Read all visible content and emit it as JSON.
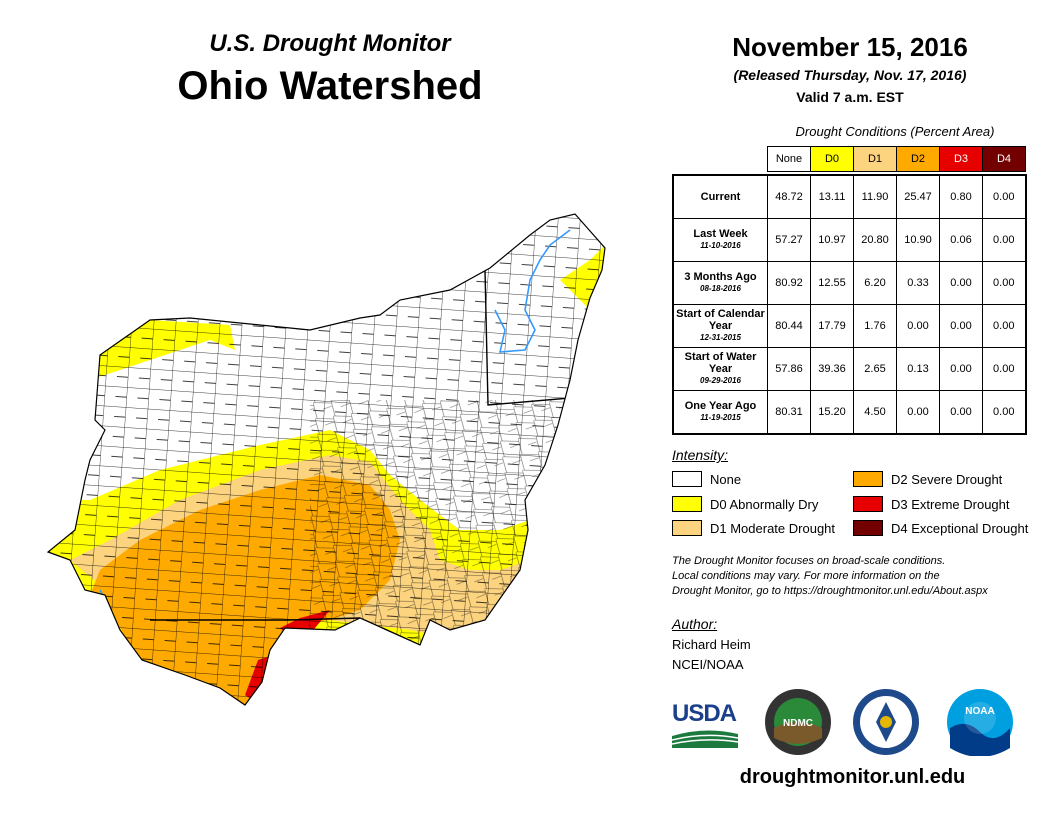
{
  "header": {
    "monitor_title": "U.S. Drought Monitor",
    "map_title": "Ohio Watershed",
    "date": "November 15, 2016",
    "released": "(Released Thursday, Nov. 17, 2016)",
    "valid": "Valid 7 a.m. EST"
  },
  "table": {
    "title": "Drought Conditions (Percent Area)",
    "columns": [
      {
        "label": "None",
        "color": "#ffffff",
        "text_color": "#000000"
      },
      {
        "label": "D0",
        "color": "#ffff00",
        "text_color": "#000000"
      },
      {
        "label": "D1",
        "color": "#fcd37f",
        "text_color": "#000000"
      },
      {
        "label": "D2",
        "color": "#ffaa00",
        "text_color": "#000000"
      },
      {
        "label": "D3",
        "color": "#e60000",
        "text_color": "#ffffff"
      },
      {
        "label": "D4",
        "color": "#730000",
        "text_color": "#ffffff"
      }
    ],
    "rows": [
      {
        "label": "Current",
        "date": "",
        "values": [
          "48.72",
          "13.11",
          "11.90",
          "25.47",
          "0.80",
          "0.00"
        ]
      },
      {
        "label": "Last Week",
        "date": "11-10-2016",
        "values": [
          "57.27",
          "10.97",
          "20.80",
          "10.90",
          "0.06",
          "0.00"
        ]
      },
      {
        "label": "3 Months Ago",
        "date": "08-18-2016",
        "values": [
          "80.92",
          "12.55",
          "6.20",
          "0.33",
          "0.00",
          "0.00"
        ]
      },
      {
        "label": "Start of Calendar Year",
        "date": "12-31-2015",
        "values": [
          "80.44",
          "17.79",
          "1.76",
          "0.00",
          "0.00",
          "0.00"
        ]
      },
      {
        "label": "Start of Water Year",
        "date": "09-29-2016",
        "values": [
          "57.86",
          "39.36",
          "2.65",
          "0.13",
          "0.00",
          "0.00"
        ]
      },
      {
        "label": "One Year Ago",
        "date": "11-19-2015",
        "values": [
          "80.31",
          "15.20",
          "4.50",
          "0.00",
          "0.00",
          "0.00"
        ]
      }
    ]
  },
  "legend": {
    "title": "Intensity:",
    "items": [
      {
        "label": "None",
        "color": "#ffffff"
      },
      {
        "label": "D0 Abnormally Dry",
        "color": "#ffff00"
      },
      {
        "label": "D1 Moderate Drought",
        "color": "#fcd37f"
      },
      {
        "label": "D2 Severe Drought",
        "color": "#ffaa00"
      },
      {
        "label": "D3 Extreme Drought",
        "color": "#e60000"
      },
      {
        "label": "D4 Exceptional Drought",
        "color": "#730000"
      }
    ]
  },
  "note": {
    "line1": "The Drought Monitor focuses on broad-scale conditions.",
    "line2": "Local conditions may vary. For more information on the",
    "line3": "Drought Monitor, go to https://droughtmonitor.unl.edu/About.aspx"
  },
  "author": {
    "title": "Author:",
    "name": "Richard Heim",
    "org": "NCEI/NOAA"
  },
  "logos": {
    "usda": "USDA",
    "ndmc": "NDMC",
    "noaa": "NOAA"
  },
  "site": "droughtmonitor.unl.edu",
  "map_colors": {
    "none": "#ffffff",
    "d0": "#ffff00",
    "d1": "#fcd37f",
    "d2": "#ffaa00",
    "d3": "#e60000",
    "river": "#3399ff"
  }
}
